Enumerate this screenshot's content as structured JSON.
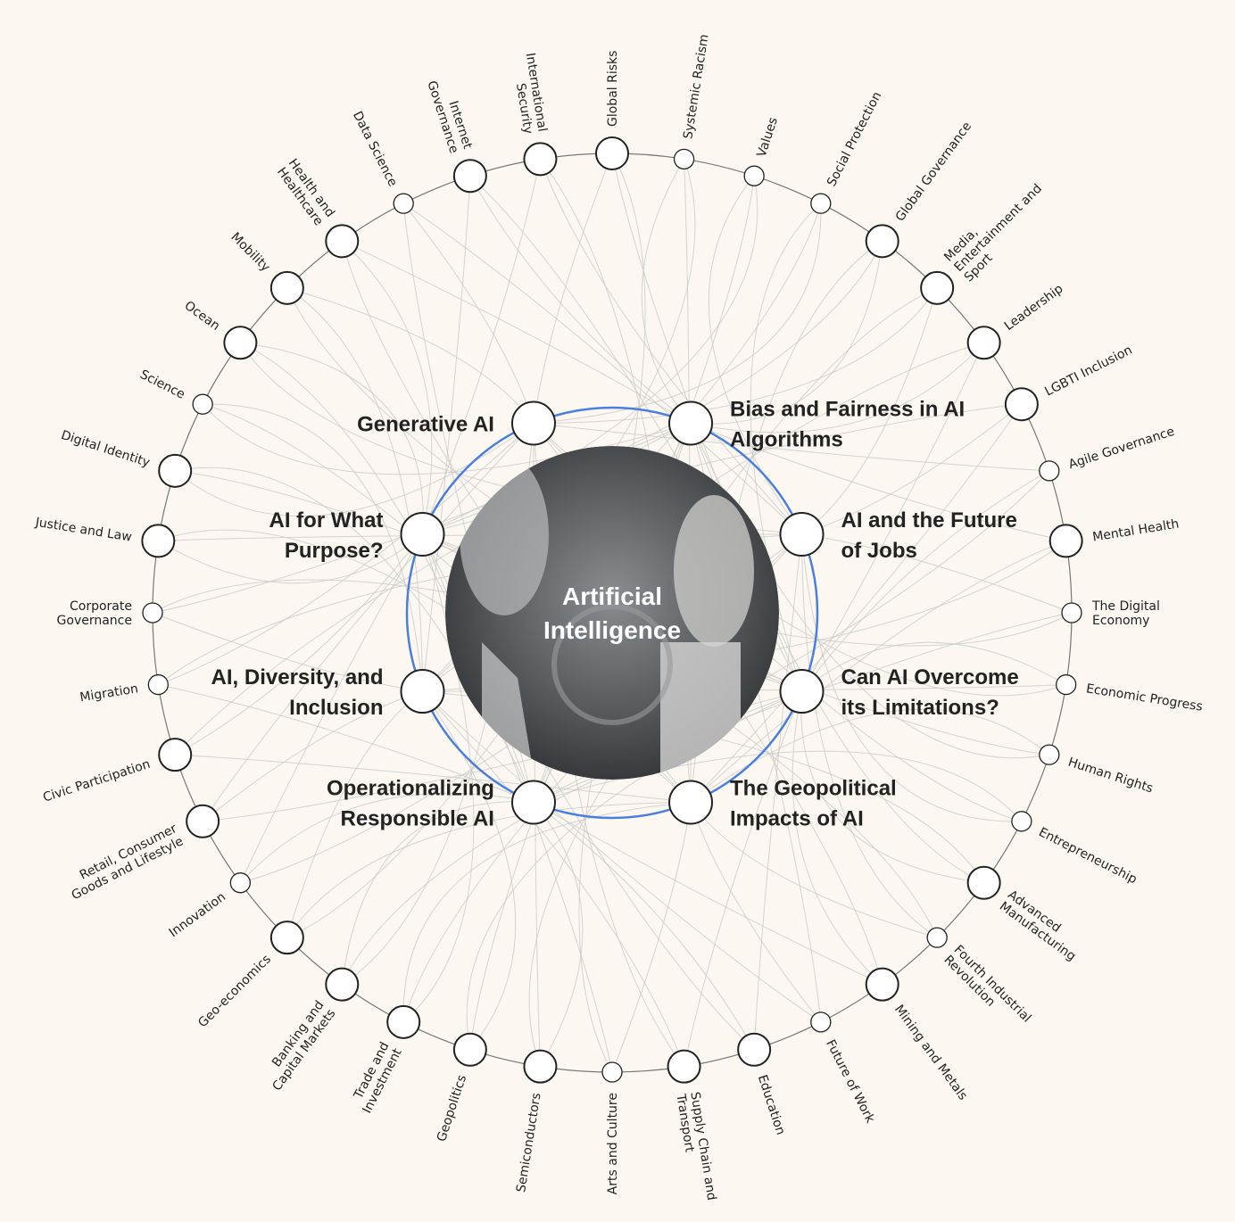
{
  "center": {
    "label": [
      "Artificial",
      "Intelligence"
    ]
  },
  "inner_nodes": [
    {
      "label": [
        "Generative AI"
      ]
    },
    {
      "label": [
        "Bias and Fairness in AI",
        "Algorithms"
      ]
    },
    {
      "label": [
        "AI and the Future",
        "of Jobs"
      ]
    },
    {
      "label": [
        "Can AI Overcome",
        "its Limitations?"
      ]
    },
    {
      "label": [
        "The Geopolitical",
        "Impacts of AI"
      ]
    },
    {
      "label": [
        "Operationalizing",
        "Responsible AI"
      ]
    },
    {
      "label": [
        "AI, Diversity, and",
        "Inclusion"
      ]
    },
    {
      "label": [
        "AI for What",
        "Purpose?"
      ]
    }
  ],
  "outer_nodes": [
    {
      "label": [
        "Global Risks"
      ]
    },
    {
      "label": [
        "Systemic Racism"
      ]
    },
    {
      "label": [
        "Values"
      ]
    },
    {
      "label": [
        "Social Protection"
      ]
    },
    {
      "label": [
        "Global Governance"
      ]
    },
    {
      "label": [
        "Media,",
        "Entertainment and",
        "Sport"
      ]
    },
    {
      "label": [
        "Leadership"
      ]
    },
    {
      "label": [
        "LGBTI Inclusion"
      ]
    },
    {
      "label": [
        "Agile Governance"
      ]
    },
    {
      "label": [
        "Mental Health"
      ]
    },
    {
      "label": [
        "The Digital",
        "Economy"
      ]
    },
    {
      "label": [
        "Economic Progress"
      ]
    },
    {
      "label": [
        "Human Rights"
      ]
    },
    {
      "label": [
        "Entrepreneurship"
      ]
    },
    {
      "label": [
        "Advanced",
        "Manufacturing"
      ]
    },
    {
      "label": [
        "Fourth Industrial",
        "Revolution"
      ]
    },
    {
      "label": [
        "Mining and Metals"
      ]
    },
    {
      "label": [
        "Future of Work"
      ]
    },
    {
      "label": [
        "Education"
      ]
    },
    {
      "label": [
        "Supply Chain and",
        "Transport"
      ]
    },
    {
      "label": [
        "Arts and Culture"
      ]
    },
    {
      "label": [
        "Semiconductors"
      ]
    },
    {
      "label": [
        "Geopolitics"
      ]
    },
    {
      "label": [
        "Trade and",
        "Investment"
      ]
    },
    {
      "label": [
        "Banking and",
        "Capital Markets"
      ]
    },
    {
      "label": [
        "Geo-economics"
      ]
    },
    {
      "label": [
        "Innovation"
      ]
    },
    {
      "label": [
        "Retail, Consumer",
        "Goods and Lifestyle"
      ]
    },
    {
      "label": [
        "Civic Participation"
      ]
    },
    {
      "label": [
        "Migration"
      ]
    },
    {
      "label": [
        "Corporate",
        "Governance"
      ]
    },
    {
      "label": [
        "Justice and Law"
      ]
    },
    {
      "label": [
        "Digital Identity"
      ]
    },
    {
      "label": [
        "Science"
      ]
    },
    {
      "label": [
        "Ocean"
      ]
    },
    {
      "label": [
        "Mobility"
      ]
    },
    {
      "label": [
        "Health and",
        "Healthcare"
      ]
    },
    {
      "label": [
        "Data Science"
      ]
    },
    {
      "label": [
        "Internet",
        "Governance"
      ]
    },
    {
      "label": [
        "International",
        "Security"
      ]
    }
  ]
}
